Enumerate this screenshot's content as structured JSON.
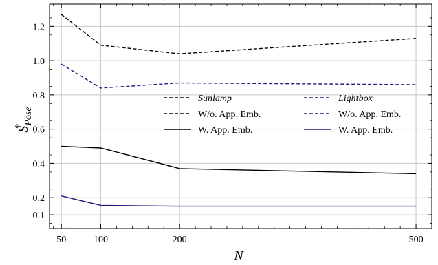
{
  "chart_data": {
    "type": "line",
    "xlabel": "N",
    "ylabel": {
      "base": "S",
      "sup": "*",
      "sub": "Pose"
    },
    "xlim": [
      35,
      520
    ],
    "ylim": [
      0.02,
      1.33
    ],
    "xticks": [
      50,
      100,
      200,
      500
    ],
    "xtick_labels": [
      "50",
      "100",
      "200",
      "500"
    ],
    "yticks": [
      0.1,
      0.2,
      0.4,
      0.6,
      0.8,
      1.0,
      1.2
    ],
    "ytick_labels": [
      "0.1",
      "0.2",
      "0.4",
      "0.6",
      "0.8",
      "1.0",
      "1.2"
    ],
    "grid": true,
    "legend_placement": "center-right",
    "legend_headers": [
      {
        "text": "Sunlamp",
        "style": "dashed",
        "color": "#000000"
      },
      {
        "text": "Lightbox",
        "style": "dashed",
        "color": "#1a1a7e"
      }
    ],
    "series": [
      {
        "name": "W/o. App. Emb.",
        "group": "Sunlamp",
        "style": "dashed",
        "color": "#000000",
        "x": [
          50,
          100,
          200,
          500
        ],
        "y": [
          1.27,
          1.09,
          1.04,
          1.13
        ]
      },
      {
        "name": "W/o. App. Emb.",
        "group": "Lightbox",
        "style": "dashed",
        "color": "#1a1a7e",
        "x": [
          50,
          100,
          200,
          500
        ],
        "y": [
          0.98,
          0.84,
          0.87,
          0.86
        ]
      },
      {
        "name": "W. App. Emb.",
        "group": "Sunlamp",
        "style": "solid",
        "color": "#000000",
        "x": [
          50,
          100,
          200,
          500
        ],
        "y": [
          0.5,
          0.49,
          0.37,
          0.34
        ]
      },
      {
        "name": "W. App. Emb.",
        "group": "Lightbox",
        "style": "solid",
        "color": "#1a1a7e",
        "x": [
          50,
          100,
          200,
          500
        ],
        "y": [
          0.21,
          0.155,
          0.15,
          0.15
        ]
      }
    ]
  }
}
